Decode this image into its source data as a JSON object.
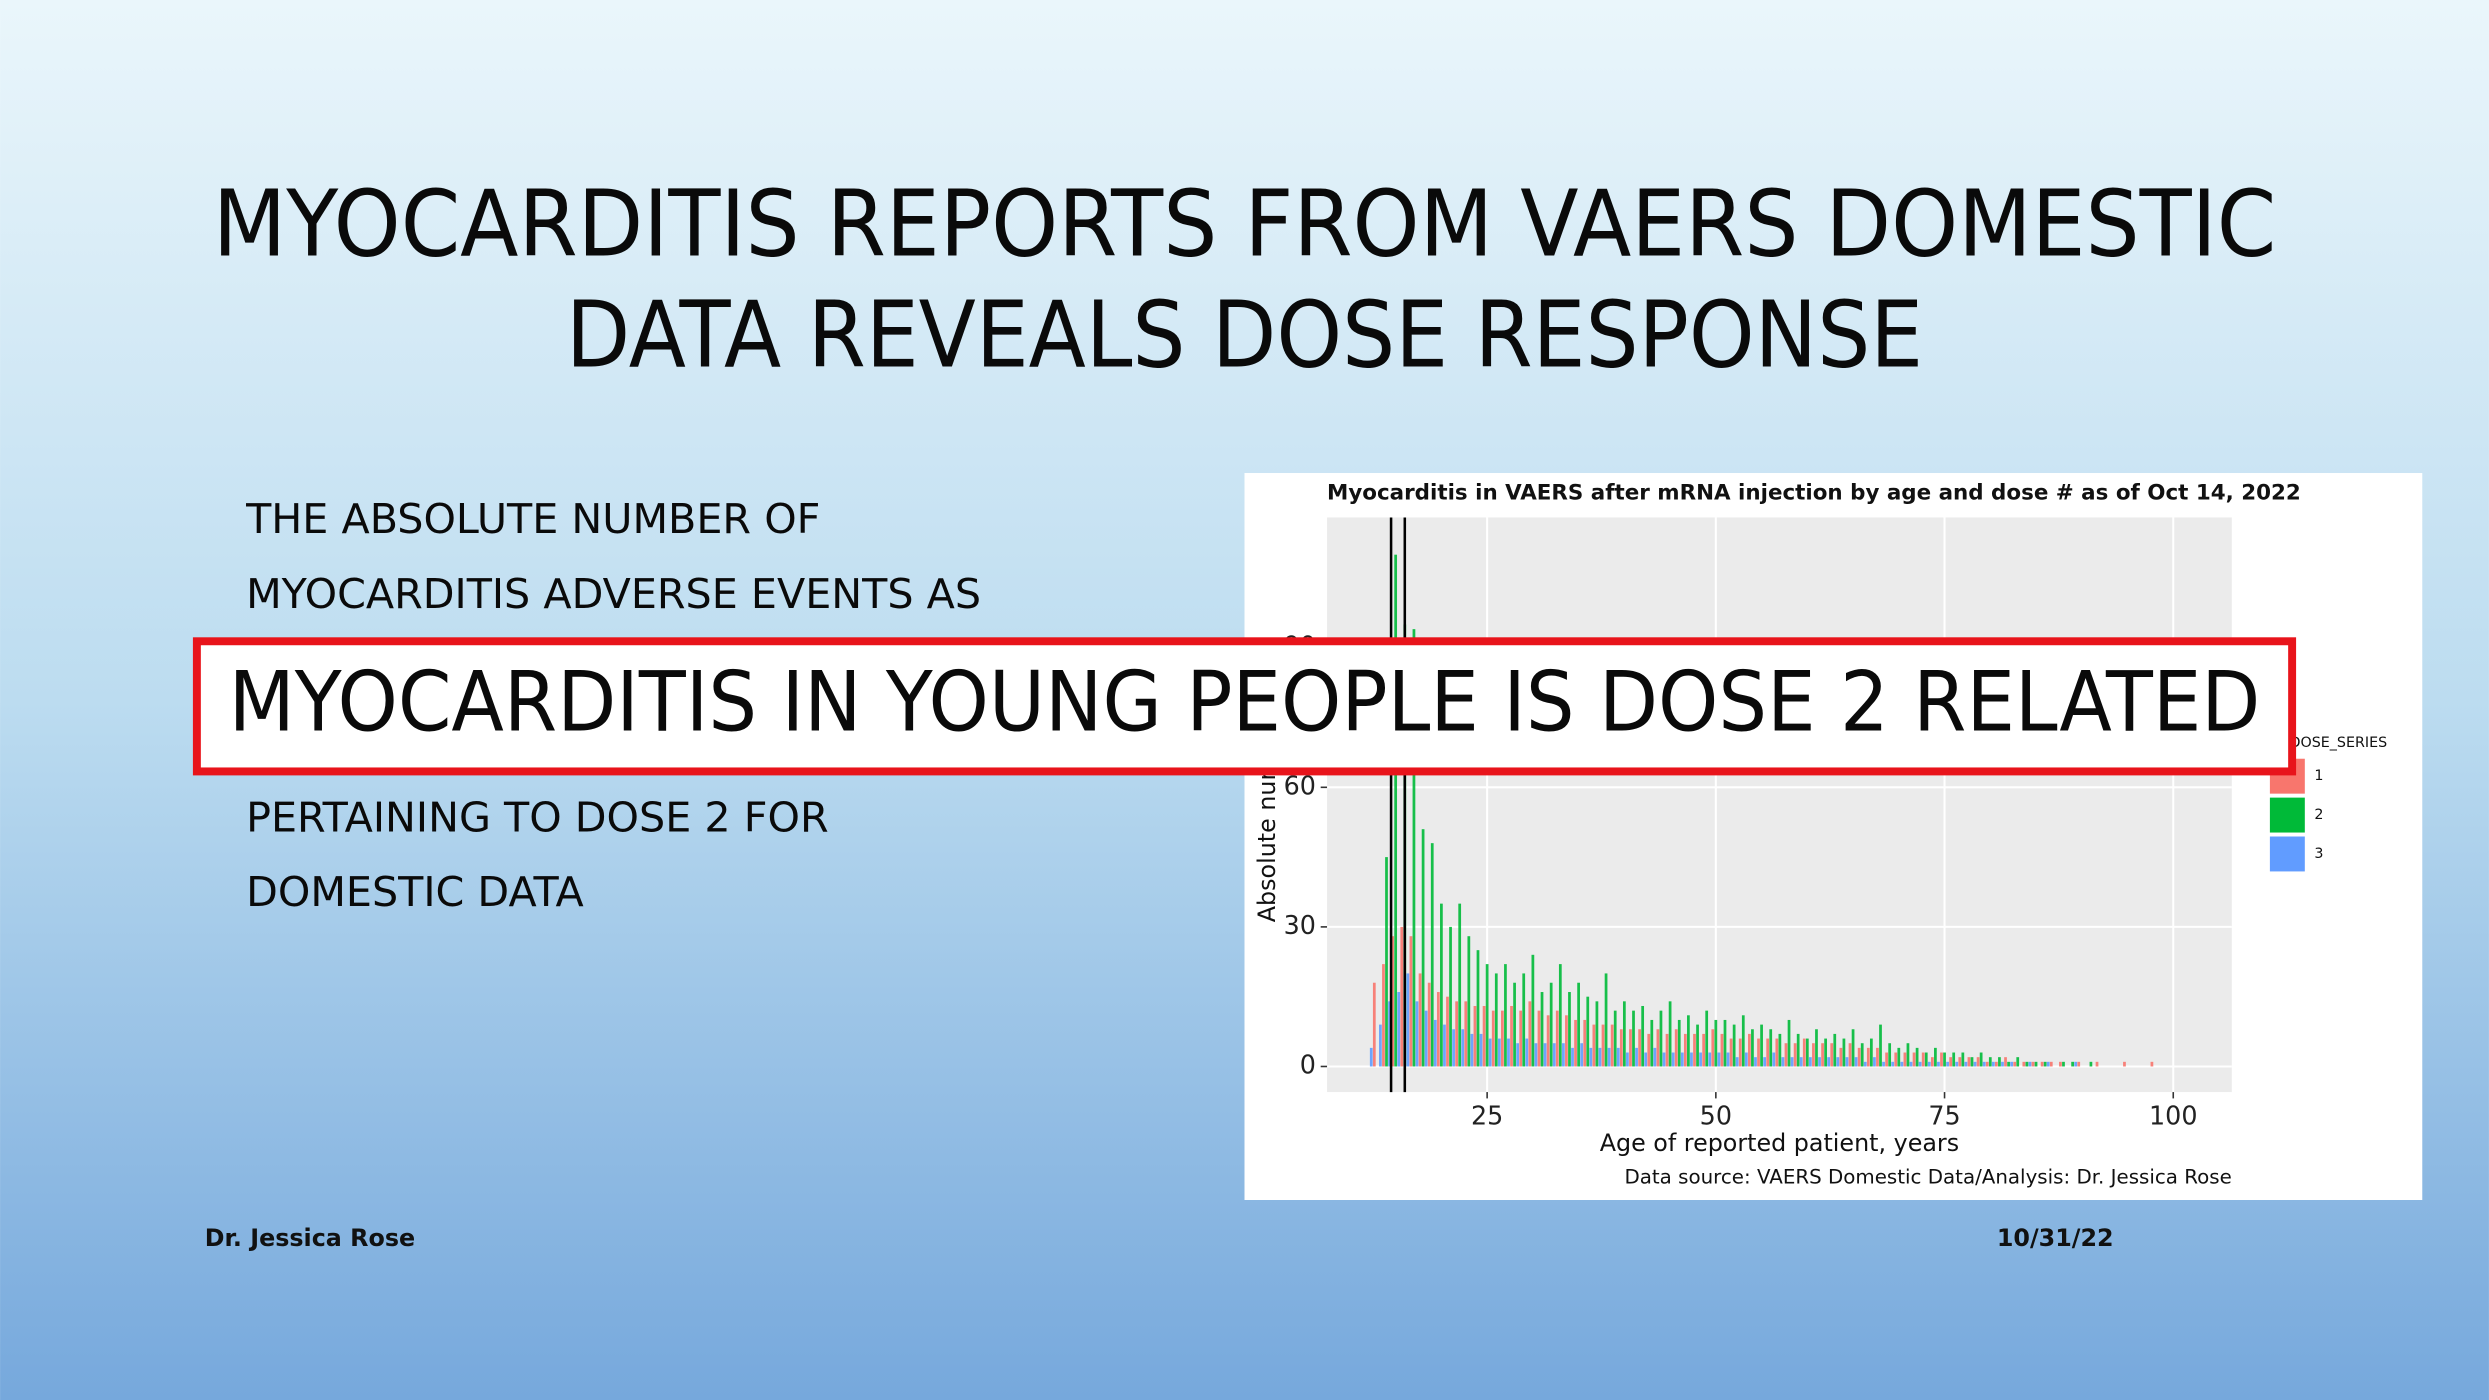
{
  "slide": {
    "title_lines": [
      "MYOCARDITIS REPORTS FROM VAERS DOMESTIC",
      "DATA REVEALS DOSE RESPONSE"
    ],
    "body_lines": [
      "THE ABSOLUTE NUMBER OF",
      "MYOCARDITIS ADVERSE EVENTS AS",
      "PERTAINING TO DOSE 2 FOR",
      "DOMESTIC DATA"
    ],
    "banner": "MYOCARDITIS IN YOUNG PEOPLE IS DOSE 2 RELATED",
    "footer_left": "Dr. Jessica Rose",
    "footer_right": "10/31/22"
  },
  "chart_data": {
    "type": "bar",
    "title": "Myocarditis in VAERS after mRNA injection by age and dose # as of Oct 14, 2022",
    "x_label": "Age of reported patient, years",
    "y_label": "Absolute number of",
    "caption": "Data source: VAERS Domestic Data/Analysis: Dr. Jessica Rose",
    "legend_title": "VAX_DOSE_SERIES",
    "x": [
      12,
      13,
      14,
      15,
      16,
      17,
      18,
      19,
      20,
      21,
      22,
      23,
      24,
      25,
      26,
      27,
      28,
      29,
      30,
      31,
      32,
      33,
      34,
      35,
      36,
      37,
      38,
      39,
      40,
      41,
      42,
      43,
      44,
      45,
      46,
      47,
      48,
      49,
      50,
      51,
      52,
      53,
      54,
      55,
      56,
      57,
      58,
      59,
      60,
      61,
      62,
      63,
      64,
      65,
      66,
      67,
      68,
      69,
      70,
      71,
      72,
      73,
      74,
      75,
      76,
      77,
      78,
      79,
      80,
      81,
      82,
      83,
      84,
      85,
      86,
      87,
      88,
      89,
      90,
      91,
      92,
      93,
      94,
      95,
      96,
      97,
      98
    ],
    "series": [
      {
        "name": "1",
        "color": "#F8766D",
        "values": [
          0,
          18,
          22,
          28,
          30,
          28,
          20,
          18,
          16,
          15,
          14,
          14,
          13,
          13,
          12,
          12,
          13,
          12,
          14,
          12,
          11,
          12,
          11,
          10,
          10,
          9,
          9,
          9,
          8,
          8,
          8,
          7,
          8,
          7,
          8,
          7,
          7,
          7,
          8,
          7,
          6,
          6,
          7,
          6,
          6,
          6,
          5,
          5,
          6,
          5,
          5,
          5,
          4,
          5,
          4,
          4,
          4,
          3,
          3,
          3,
          3,
          3,
          2,
          3,
          2,
          2,
          2,
          2,
          1,
          1,
          2,
          1,
          1,
          1,
          1,
          1,
          1,
          0,
          1,
          0,
          1,
          0,
          0,
          1,
          0,
          0,
          1
        ]
      },
      {
        "name": "2",
        "color": "#00BA38",
        "values": [
          0,
          0,
          45,
          110,
          95,
          94,
          51,
          48,
          35,
          30,
          35,
          28,
          25,
          22,
          20,
          22,
          18,
          20,
          24,
          16,
          18,
          22,
          16,
          18,
          15,
          14,
          20,
          12,
          14,
          12,
          13,
          10,
          12,
          14,
          10,
          11,
          9,
          12,
          10,
          10,
          9,
          11,
          8,
          9,
          8,
          7,
          10,
          7,
          6,
          8,
          6,
          7,
          6,
          8,
          5,
          6,
          9,
          5,
          4,
          5,
          4,
          3,
          4,
          3,
          3,
          3,
          2,
          3,
          2,
          2,
          1,
          2,
          1,
          1,
          1,
          0,
          1,
          1,
          0,
          1,
          0,
          0,
          0,
          0,
          0,
          0,
          0
        ]
      },
      {
        "name": "3",
        "color": "#619CFF",
        "values": [
          4,
          9,
          14,
          16,
          20,
          14,
          12,
          10,
          9,
          8,
          8,
          7,
          7,
          6,
          6,
          6,
          5,
          6,
          5,
          5,
          5,
          5,
          4,
          5,
          4,
          4,
          4,
          4,
          3,
          4,
          3,
          4,
          3,
          3,
          3,
          3,
          3,
          3,
          3,
          3,
          2,
          3,
          2,
          2,
          3,
          2,
          2,
          2,
          2,
          2,
          2,
          2,
          2,
          2,
          1,
          2,
          1,
          1,
          1,
          1,
          1,
          1,
          1,
          1,
          1,
          1,
          1,
          1,
          1,
          1,
          1,
          0,
          1,
          0,
          1,
          0,
          0,
          1,
          0,
          0,
          0,
          0,
          0,
          0,
          0,
          0,
          0
        ]
      }
    ],
    "vlines": [
      14.5,
      16
    ],
    "xlim": [
      7.5,
      106.4
    ],
    "xticks": [
      25,
      50,
      75,
      100
    ],
    "ylim": [
      -5.5,
      118
    ],
    "yticks": [
      0,
      30,
      60,
      90
    ],
    "grid": true
  }
}
